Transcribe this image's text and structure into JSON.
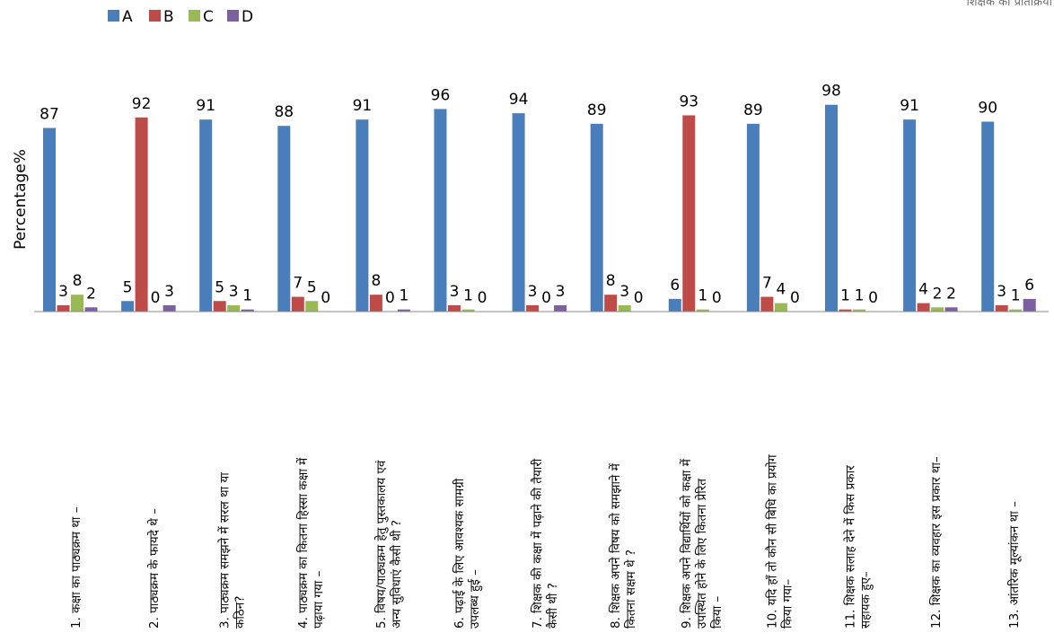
{
  "chart_data": {
    "type": "bar",
    "ylabel": "Percentage%",
    "ylim": [
      0,
      100
    ],
    "grid": false,
    "legend_position": "top-left",
    "corner_text": "शिक्षक की प्रतिक्रिया",
    "categories": [
      [
        "1.   कक्षा का पाठ्यक्रम था –"
      ],
      [
        "2.   पाठ्यक्रम के फायदे थे –"
      ],
      [
        "3.   पाठ्यक्रम समझने में सरल था या",
        "कठिन?"
      ],
      [
        "4. पाठ्यक्रम का कितना हिस्सा कक्षा में",
        "पढ़ाया गया –"
      ],
      [
        "5.   विषय/पाठ्यक्रम हेतु पुस्तकालय एवं",
        "अन्य सुविधाएं कैसी थी ?"
      ],
      [
        "6.   पढ़ाई के लिए आवश्यक सामग्री",
        "उपलब्ध हुई –"
      ],
      [
        "7.   शिक्षक की कक्षा में पढ़ाने की तैयारी",
        "कैसी थी ?"
      ],
      [
        "8.   शिक्षक अपने विषय को समझाने में",
        "कितना सक्षम थे ?"
      ],
      [
        "9.   शिक्षक अपने विद्यार्थियों को कक्षा में",
        "उपस्थित होने के लिए कितना प्रेरित",
        "किया –"
      ],
      [
        "10. यदि हॉं तो कौन सी बिधि का प्रयोग",
        "किया गया–"
      ],
      [
        "11. शिक्षक सलाह देने में किस प्रकार",
        "सहायक हुए–"
      ],
      [
        "12. शिक्षक का व्यवहार इस प्रकार था–"
      ],
      [
        "13. आंतरिक मूल्यांकन था –"
      ]
    ],
    "series": [
      {
        "name": "A",
        "color": "#4a7ebb",
        "values": [
          87,
          5,
          91,
          88,
          91,
          96,
          94,
          89,
          6,
          89,
          98,
          91,
          90
        ]
      },
      {
        "name": "B",
        "color": "#be4b48",
        "values": [
          3,
          92,
          5,
          7,
          8,
          3,
          3,
          8,
          93,
          7,
          1,
          4,
          3
        ]
      },
      {
        "name": "C",
        "color": "#98b954",
        "values": [
          8,
          0,
          3,
          5,
          0,
          1,
          0,
          3,
          1,
          4,
          1,
          2,
          1
        ]
      },
      {
        "name": "D",
        "color": "#7d60a0",
        "values": [
          2,
          3,
          1,
          0,
          1,
          0,
          3,
          0,
          0,
          0,
          0,
          2,
          6
        ]
      }
    ]
  }
}
